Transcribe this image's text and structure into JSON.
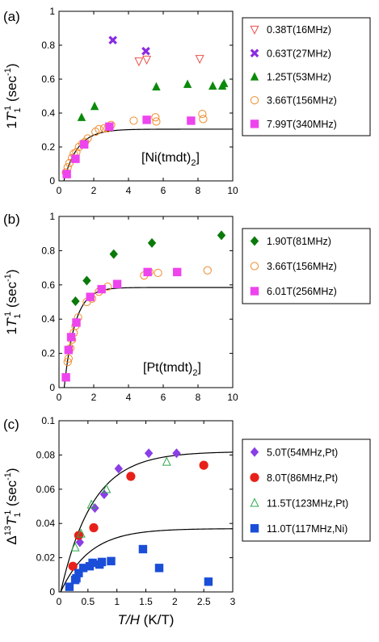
{
  "chart_data": [
    {
      "type": "scatter",
      "panel_label": "(a)",
      "ylabel": {
        "prefix": "1",
        "var": "T",
        "sub": "1",
        "sup": "-1",
        "unit": "(sec",
        "unit_sup": "-1",
        "unit_close": ")"
      },
      "annotation": {
        "text": "[Ni(tmdt)",
        "sub": "2",
        "close": "]"
      },
      "xlim": [
        0,
        10
      ],
      "ylim": [
        0,
        1
      ],
      "xticks": [
        0,
        2,
        4,
        6,
        8,
        10
      ],
      "yticks": [
        0,
        0.2,
        0.4,
        0.6,
        0.8,
        1
      ],
      "ytick_labels": [
        "0",
        "0.2",
        "0.4",
        "0.6",
        "0.8",
        "1"
      ],
      "grid": false,
      "legend_position": "right",
      "series": [
        {
          "name": "0.38T(16MHz)",
          "marker": "triangle-down-open",
          "color": "#e8504a",
          "points": [
            [
              4.6,
              0.705
            ],
            [
              5.05,
              0.715
            ],
            [
              8.1,
              0.72
            ]
          ]
        },
        {
          "name": "0.63T(27MHz)",
          "marker": "x",
          "color": "#8a2be2",
          "points": [
            [
              3.1,
              0.83
            ],
            [
              5.0,
              0.765
            ]
          ]
        },
        {
          "name": "1.25T(53MHz)",
          "marker": "triangle-up",
          "color": "#0a8a0a",
          "points": [
            [
              1.3,
              0.375
            ],
            [
              2.05,
              0.44
            ],
            [
              5.6,
              0.555
            ],
            [
              7.4,
              0.57
            ],
            [
              8.85,
              0.56
            ],
            [
              9.4,
              0.56
            ],
            [
              9.5,
              0.575
            ]
          ]
        },
        {
          "name": "3.66T(156MHz)",
          "marker": "circle-open",
          "color": "#ee8a2a",
          "points": [
            [
              0.4,
              0.05
            ],
            [
              0.5,
              0.08
            ],
            [
              0.6,
              0.105
            ],
            [
              0.75,
              0.135
            ],
            [
              0.85,
              0.16
            ],
            [
              1.0,
              0.17
            ],
            [
              1.15,
              0.2
            ],
            [
              1.35,
              0.22
            ],
            [
              1.5,
              0.23
            ],
            [
              1.65,
              0.25
            ],
            [
              2.1,
              0.29
            ],
            [
              2.3,
              0.305
            ],
            [
              2.6,
              0.31
            ],
            [
              2.8,
              0.31
            ],
            [
              3.0,
              0.33
            ],
            [
              4.3,
              0.355
            ],
            [
              5.55,
              0.375
            ],
            [
              5.6,
              0.35
            ],
            [
              8.25,
              0.395
            ],
            [
              8.3,
              0.365
            ]
          ]
        },
        {
          "name": "7.99T(340MHz)",
          "marker": "square",
          "color": "#ee44ee",
          "points": [
            [
              0.45,
              0.04
            ],
            [
              0.95,
              0.13
            ],
            [
              1.45,
              0.215
            ],
            [
              2.9,
              0.32
            ],
            [
              5.05,
              0.36
            ],
            [
              7.6,
              0.355
            ]
          ]
        }
      ],
      "fit_curve": {
        "A": 0.305,
        "x0": 0.28,
        "tau": 0.8
      }
    },
    {
      "type": "scatter",
      "panel_label": "(b)",
      "ylabel": {
        "prefix": "1",
        "var": "T",
        "sub": "1",
        "sup": "-1",
        "unit": "(sec",
        "unit_sup": "-1",
        "unit_close": ")"
      },
      "annotation": {
        "text": "[Pt(tmdt)",
        "sub": "2",
        "close": "]"
      },
      "xlim": [
        0,
        10
      ],
      "ylim": [
        0,
        1
      ],
      "xticks": [
        0,
        2,
        4,
        6,
        8,
        10
      ],
      "yticks": [
        0,
        0.2,
        0.4,
        0.6,
        0.8,
        1
      ],
      "ytick_labels": [
        "0",
        "0.2",
        "0.4",
        "0.6",
        "0.8",
        "1"
      ],
      "grid": false,
      "legend_position": "right",
      "series": [
        {
          "name": "1.90T(81MHz)",
          "marker": "diamond",
          "color": "#0a7a0a",
          "points": [
            [
              0.95,
              0.505
            ],
            [
              1.6,
              0.625
            ],
            [
              3.15,
              0.78
            ],
            [
              5.35,
              0.845
            ],
            [
              9.35,
              0.89
            ]
          ]
        },
        {
          "name": "3.66T(156MHz)",
          "marker": "circle-open",
          "color": "#ee8a2a",
          "points": [
            [
              0.5,
              0.15
            ],
            [
              0.55,
              0.17
            ],
            [
              0.65,
              0.23
            ],
            [
              0.75,
              0.28
            ],
            [
              0.85,
              0.32
            ],
            [
              0.95,
              0.36
            ],
            [
              1.1,
              0.41
            ],
            [
              1.6,
              0.5
            ],
            [
              1.9,
              0.52
            ],
            [
              2.3,
              0.56
            ],
            [
              2.8,
              0.59
            ],
            [
              4.9,
              0.655
            ],
            [
              5.2,
              0.675
            ],
            [
              5.7,
              0.67
            ],
            [
              8.55,
              0.685
            ]
          ]
        },
        {
          "name": "6.01T(256MHz)",
          "marker": "square",
          "color": "#ee44ee",
          "points": [
            [
              0.4,
              0.06
            ],
            [
              0.55,
              0.22
            ],
            [
              0.7,
              0.295
            ],
            [
              1.0,
              0.38
            ],
            [
              1.8,
              0.53
            ],
            [
              2.45,
              0.575
            ],
            [
              3.35,
              0.605
            ],
            [
              5.1,
              0.675
            ],
            [
              6.8,
              0.675
            ]
          ]
        }
      ],
      "fit_curve": {
        "A": 0.585,
        "x0": 0.3,
        "tau": 0.62
      }
    },
    {
      "type": "scatter",
      "panel_label": "(c)",
      "ylabel": {
        "prefix": "Δ",
        "sup13": "13",
        "var": "T",
        "sub": "1",
        "sup": "-1",
        "unit": "(sec",
        "unit_sup": "-1",
        "unit_close": ")"
      },
      "xlabel": {
        "var": "T/H",
        "unit": " (K/T)"
      },
      "xlim": [
        0,
        3
      ],
      "ylim": [
        0,
        0.1
      ],
      "xticks": [
        0,
        0.5,
        1,
        1.5,
        2,
        2.5,
        3
      ],
      "yticks": [
        0,
        0.02,
        0.04,
        0.06,
        0.08,
        0.1
      ],
      "xtick_labels": [
        "0",
        "0.5",
        "1",
        "1.5",
        "2",
        "2.5",
        "3"
      ],
      "ytick_labels": [
        "0",
        "0.02",
        "0.04",
        "0.06",
        "0.08",
        "0.1"
      ],
      "grid": false,
      "legend_position": "right",
      "series": [
        {
          "name": "5.0T(54MHz,Pt)",
          "marker": "diamond",
          "color": "#8a3ee6",
          "points": [
            [
              0.36,
              0.029
            ],
            [
              0.62,
              0.049
            ],
            [
              0.78,
              0.057
            ],
            [
              1.03,
              0.072
            ],
            [
              1.55,
              0.081
            ],
            [
              2.03,
              0.081
            ]
          ]
        },
        {
          "name": "8.0T(86MHz,Pt)",
          "marker": "circle",
          "color": "#e8201a",
          "points": [
            [
              0.24,
              0.015
            ],
            [
              0.34,
              0.033
            ],
            [
              0.6,
              0.0375
            ],
            [
              1.24,
              0.0675
            ],
            [
              2.5,
              0.074
            ]
          ]
        },
        {
          "name": "11.5T(123MHz,Pt)",
          "marker": "triangle-up-open",
          "color": "#2aa84a",
          "points": [
            [
              0.28,
              0.026
            ],
            [
              0.38,
              0.034
            ],
            [
              0.56,
              0.051
            ],
            [
              0.82,
              0.06
            ],
            [
              1.86,
              0.076
            ]
          ]
        },
        {
          "name": "11.0T(117MHz,Ni)",
          "marker": "square",
          "color": "#1a4ed8",
          "points": [
            [
              0.18,
              0.003
            ],
            [
              0.28,
              0.007
            ],
            [
              0.3,
              0.008
            ],
            [
              0.34,
              0.011
            ],
            [
              0.42,
              0.014
            ],
            [
              0.53,
              0.015
            ],
            [
              0.58,
              0.017
            ],
            [
              0.7,
              0.016
            ],
            [
              0.74,
              0.0175
            ],
            [
              0.9,
              0.018
            ],
            [
              1.45,
              0.025
            ],
            [
              1.73,
              0.014
            ],
            [
              2.58,
              0.006
            ]
          ]
        }
      ],
      "fit_curves": [
        {
          "A": 0.082,
          "x0": 0.03,
          "tau": 0.55
        },
        {
          "A": 0.037,
          "x0": 0.03,
          "tau": 0.5
        }
      ]
    }
  ]
}
